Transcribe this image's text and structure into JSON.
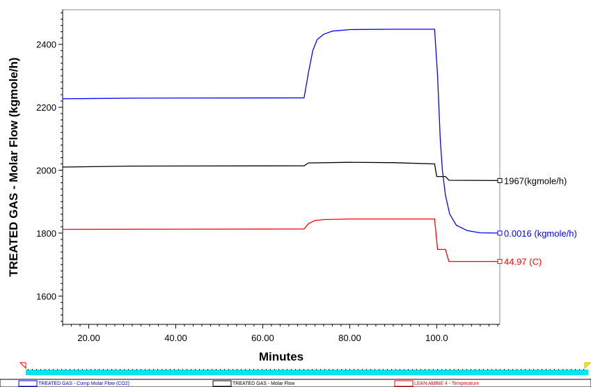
{
  "chart_data": {
    "type": "line",
    "xlabel": "Minutes",
    "ylabel": "TREATED GAS - Molar Flow (kgmole/h)",
    "xlim": [
      14,
      114.5
    ],
    "ylim": [
      1510,
      2510
    ],
    "x_ticks": [
      20,
      40,
      60,
      80,
      100
    ],
    "x_tick_labels": [
      "20.00",
      "40.00",
      "60.00",
      "80.00",
      "100.0"
    ],
    "y_ticks": [
      1600,
      1800,
      2000,
      2200,
      2400
    ],
    "y_tick_labels": [
      "1600",
      "1800",
      "2000",
      "2200",
      "2400"
    ],
    "grid": false,
    "legend_position": "bottom",
    "series": [
      {
        "name": "TREATED GAS - Comp Molar Flow (CO2)",
        "color": "#0000ff",
        "end_label": "0.0016 (kgmole/h)",
        "points": [
          [
            14,
            2227
          ],
          [
            30,
            2229
          ],
          [
            69.5,
            2230
          ],
          [
            70.5,
            2310
          ],
          [
            71.5,
            2380
          ],
          [
            72.5,
            2415
          ],
          [
            74,
            2432
          ],
          [
            76,
            2442
          ],
          [
            80,
            2447
          ],
          [
            90,
            2448
          ],
          [
            99.5,
            2448
          ],
          [
            100.2,
            2300
          ],
          [
            100.8,
            2100
          ],
          [
            101.3,
            2000
          ],
          [
            102,
            1920
          ],
          [
            103,
            1860
          ],
          [
            104.5,
            1825
          ],
          [
            107,
            1808
          ],
          [
            110,
            1801
          ],
          [
            114.5,
            1800
          ]
        ]
      },
      {
        "name": "TREATED GAS - Molar Flow",
        "color": "#000000",
        "end_label": "1967(kgmole/h)",
        "points": [
          [
            14,
            2010
          ],
          [
            30,
            2013
          ],
          [
            69.5,
            2014
          ],
          [
            70.5,
            2023
          ],
          [
            80,
            2025
          ],
          [
            90,
            2024
          ],
          [
            99.5,
            2020
          ],
          [
            100,
            1980
          ],
          [
            102,
            1980
          ],
          [
            102.8,
            1968
          ],
          [
            114.5,
            1967
          ]
        ]
      },
      {
        "name": "LEAN AMINE 4 - Temperature",
        "color": "#ff0000",
        "end_label": "44.97 (C)",
        "points": [
          [
            14,
            1812
          ],
          [
            69.5,
            1813
          ],
          [
            70.5,
            1830
          ],
          [
            72,
            1840
          ],
          [
            74,
            1843
          ],
          [
            80,
            1845
          ],
          [
            99.5,
            1845
          ],
          [
            100.2,
            1748
          ],
          [
            102,
            1748
          ],
          [
            102.8,
            1710
          ],
          [
            114.5,
            1710
          ]
        ]
      }
    ]
  }
}
